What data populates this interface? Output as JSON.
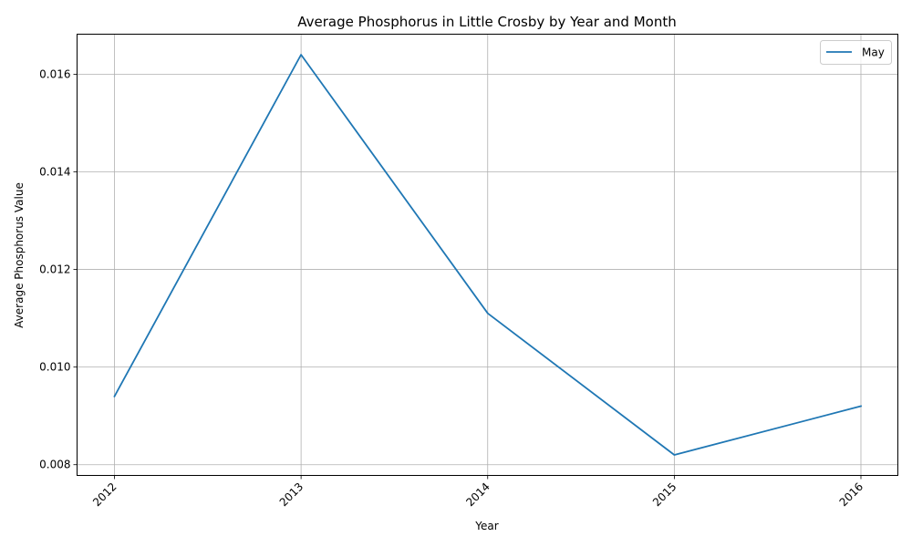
{
  "chart_data": {
    "type": "line",
    "title": "Average Phosphorus in Little Crosby by Year and Month",
    "xlabel": "Year",
    "ylabel": "Average Phosphorus Value",
    "categories": [
      "2012",
      "2013",
      "2014",
      "2015",
      "2016"
    ],
    "yticks": [
      "0.008",
      "0.010",
      "0.012",
      "0.014",
      "0.016"
    ],
    "ylim": [
      0.00778,
      0.01682
    ],
    "grid": true,
    "legend_position": "top-right",
    "series": [
      {
        "name": "May",
        "color": "#1f77b4",
        "values": [
          0.0094,
          0.0164,
          0.0111,
          0.0082,
          0.0092
        ]
      }
    ]
  }
}
